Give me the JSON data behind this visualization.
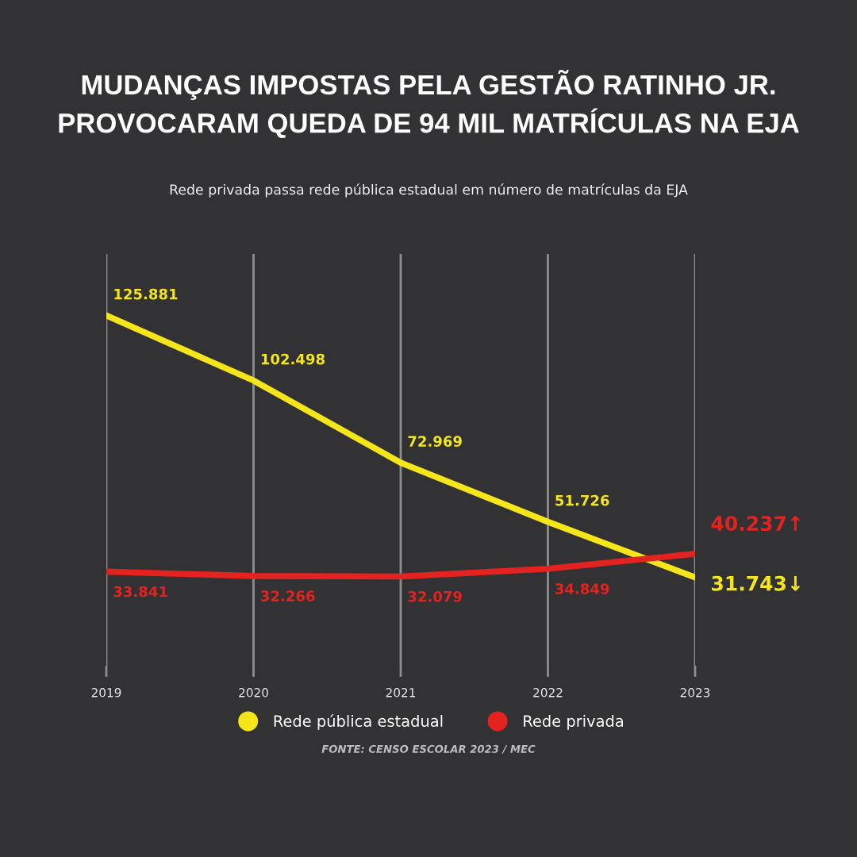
{
  "chart_data": {
    "type": "line",
    "title": "MUDANÇAS IMPOSTAS PELA GESTÃO RATINHO JR.\nPROVOCARAM QUEDA DE 94 MIL MATRÍCULAS NA EJA",
    "subtitle": "Rede privada passa rede pública estadual em número de matrículas da EJA",
    "categories": [
      "2019",
      "2020",
      "2021",
      "2022",
      "2023"
    ],
    "series": [
      {
        "name": "Rede pública estadual",
        "color": "#f5e51b",
        "values": [
          125881,
          102498,
          72969,
          51726,
          31743
        ],
        "value_labels": [
          "125.881",
          "102.498",
          "72.969",
          "51.726",
          "31.743↓"
        ]
      },
      {
        "name": "Rede privada",
        "color": "#e42320",
        "values": [
          33841,
          32266,
          32079,
          34849,
          40237
        ],
        "value_labels": [
          "33.841",
          "32.266",
          "32.079",
          "34.849",
          "40.237↑"
        ]
      }
    ],
    "ylim": [
      0,
      148000
    ],
    "grid": "x",
    "legend": "bottom",
    "line_style": "solid",
    "tick_labels": "x",
    "annotations": [
      "FONTE: CENSO ESCOLAR 2023 / MEC"
    ]
  }
}
